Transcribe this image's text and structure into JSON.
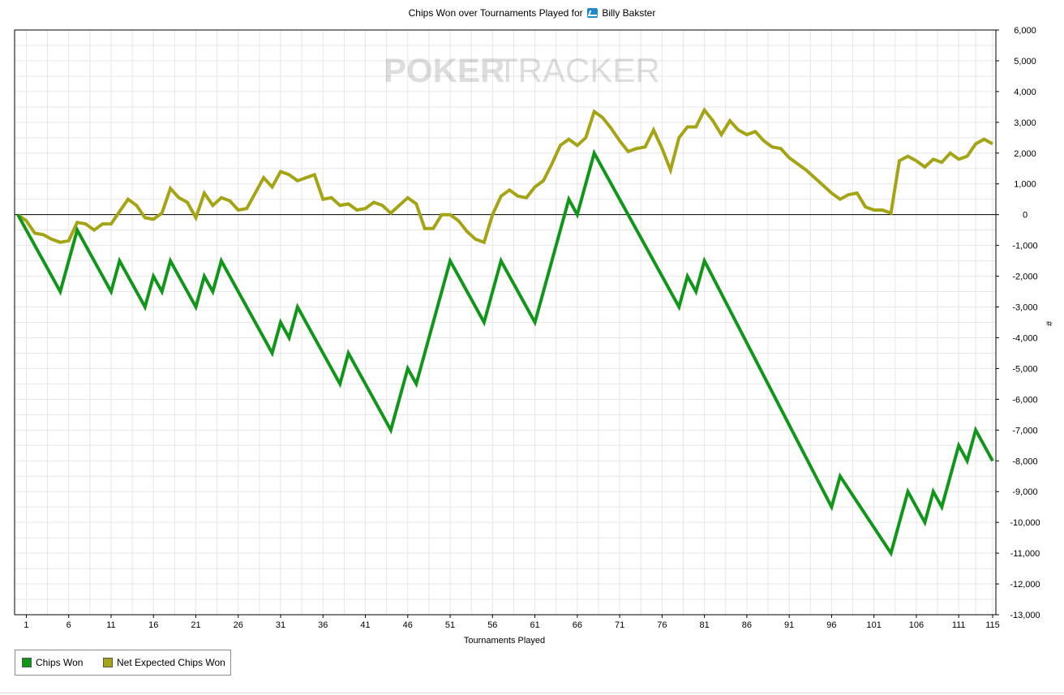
{
  "header": {
    "title_prefix": "Chips Won over Tournaments Played for",
    "site_icon": "winamax-icon",
    "player_name": "Billy Bakster"
  },
  "watermark": {
    "text_left": "POKER",
    "text_right": "TRACKER"
  },
  "chart_data": {
    "type": "line",
    "xlabel": "Tournaments Played",
    "ylabel": "#",
    "xlim": [
      0,
      115
    ],
    "ylim": [
      -13000,
      6000
    ],
    "x_ticks": [
      1,
      6,
      11,
      16,
      21,
      26,
      31,
      36,
      41,
      46,
      51,
      56,
      61,
      66,
      71,
      76,
      81,
      86,
      91,
      96,
      101,
      106,
      111,
      115
    ],
    "y_ticks": [
      6000,
      5000,
      4000,
      3000,
      2000,
      1000,
      0,
      -1000,
      -2000,
      -3000,
      -4000,
      -5000,
      -6000,
      -7000,
      -8000,
      -9000,
      -10000,
      -11000,
      -12000,
      -13000
    ],
    "y_tick_labels": [
      "6,000",
      "5,000",
      "4,000",
      "3,000",
      "2,000",
      "1,000",
      "0",
      "-1,000",
      "-2,000",
      "-3,000",
      "-4,000",
      "-5,000",
      "-6,000",
      "-7,000",
      "-8,000",
      "-9,000",
      "-10,000",
      "-11,000",
      "-12,000",
      "-13,000"
    ],
    "grid": true,
    "zero_line": true,
    "legend_position": "bottom-left",
    "series": [
      {
        "name": "Chips Won",
        "color": "#109618",
        "points": [
          [
            0,
            0
          ],
          [
            5,
            -2500
          ],
          [
            7,
            -500
          ],
          [
            11,
            -2500
          ],
          [
            12,
            -1500
          ],
          [
            15,
            -3000
          ],
          [
            16,
            -2000
          ],
          [
            17,
            -2500
          ],
          [
            18,
            -1500
          ],
          [
            21,
            -3000
          ],
          [
            22,
            -2000
          ],
          [
            23,
            -2500
          ],
          [
            24,
            -1500
          ],
          [
            30,
            -4500
          ],
          [
            31,
            -3500
          ],
          [
            32,
            -4000
          ],
          [
            33,
            -3000
          ],
          [
            38,
            -5500
          ],
          [
            39,
            -4500
          ],
          [
            44,
            -7000
          ],
          [
            46,
            -5000
          ],
          [
            47,
            -5500
          ],
          [
            51,
            -1500
          ],
          [
            55,
            -3500
          ],
          [
            57,
            -1500
          ],
          [
            61,
            -3500
          ],
          [
            65,
            500
          ],
          [
            66,
            0
          ],
          [
            68,
            2000
          ],
          [
            78,
            -3000
          ],
          [
            79,
            -2000
          ],
          [
            80,
            -2500
          ],
          [
            81,
            -1500
          ],
          [
            96,
            -9500
          ],
          [
            97,
            -8500
          ],
          [
            103,
            -11000
          ],
          [
            105,
            -9000
          ],
          [
            107,
            -10000
          ],
          [
            108,
            -9000
          ],
          [
            109,
            -9500
          ],
          [
            111,
            -7500
          ],
          [
            112,
            -8000
          ],
          [
            113,
            -7000
          ],
          [
            115,
            -8000
          ]
        ]
      },
      {
        "name": "Net Expected Chips Won",
        "color": "#a4a415",
        "points": [
          [
            0,
            0
          ],
          [
            1,
            -200
          ],
          [
            2,
            -600
          ],
          [
            3,
            -650
          ],
          [
            4,
            -800
          ],
          [
            5,
            -900
          ],
          [
            6,
            -850
          ],
          [
            7,
            -250
          ],
          [
            8,
            -300
          ],
          [
            9,
            -500
          ],
          [
            10,
            -300
          ],
          [
            11,
            -300
          ],
          [
            12,
            100
          ],
          [
            13,
            500
          ],
          [
            14,
            300
          ],
          [
            15,
            -100
          ],
          [
            16,
            -150
          ],
          [
            17,
            50
          ],
          [
            18,
            850
          ],
          [
            19,
            550
          ],
          [
            20,
            400
          ],
          [
            21,
            -100
          ],
          [
            22,
            700
          ],
          [
            23,
            300
          ],
          [
            24,
            550
          ],
          [
            25,
            450
          ],
          [
            26,
            150
          ],
          [
            27,
            200
          ],
          [
            28,
            700
          ],
          [
            29,
            1200
          ],
          [
            30,
            900
          ],
          [
            31,
            1400
          ],
          [
            32,
            1300
          ],
          [
            33,
            1100
          ],
          [
            34,
            1200
          ],
          [
            35,
            1300
          ],
          [
            36,
            500
          ],
          [
            37,
            550
          ],
          [
            38,
            300
          ],
          [
            39,
            350
          ],
          [
            40,
            150
          ],
          [
            41,
            200
          ],
          [
            42,
            400
          ],
          [
            43,
            300
          ],
          [
            44,
            50
          ],
          [
            45,
            300
          ],
          [
            46,
            550
          ],
          [
            47,
            350
          ],
          [
            48,
            -450
          ],
          [
            49,
            -450
          ],
          [
            50,
            0
          ],
          [
            51,
            0
          ],
          [
            52,
            -200
          ],
          [
            53,
            -550
          ],
          [
            54,
            -800
          ],
          [
            55,
            -900
          ],
          [
            56,
            0
          ],
          [
            57,
            600
          ],
          [
            58,
            800
          ],
          [
            59,
            600
          ],
          [
            60,
            550
          ],
          [
            61,
            900
          ],
          [
            62,
            1100
          ],
          [
            63,
            1650
          ],
          [
            64,
            2250
          ],
          [
            65,
            2450
          ],
          [
            66,
            2250
          ],
          [
            67,
            2500
          ],
          [
            68,
            3350
          ],
          [
            69,
            3150
          ],
          [
            70,
            2800
          ],
          [
            71,
            2400
          ],
          [
            72,
            2050
          ],
          [
            73,
            2150
          ],
          [
            74,
            2200
          ],
          [
            75,
            2750
          ],
          [
            76,
            2150
          ],
          [
            77,
            1450
          ],
          [
            78,
            2500
          ],
          [
            79,
            2850
          ],
          [
            80,
            2850
          ],
          [
            81,
            3400
          ],
          [
            82,
            3050
          ],
          [
            83,
            2600
          ],
          [
            84,
            3050
          ],
          [
            85,
            2750
          ],
          [
            86,
            2600
          ],
          [
            87,
            2700
          ],
          [
            88,
            2400
          ],
          [
            89,
            2200
          ],
          [
            90,
            2150
          ],
          [
            91,
            1850
          ],
          [
            92,
            1650
          ],
          [
            93,
            1450
          ],
          [
            94,
            1200
          ],
          [
            95,
            950
          ],
          [
            96,
            700
          ],
          [
            97,
            500
          ],
          [
            98,
            650
          ],
          [
            99,
            700
          ],
          [
            100,
            250
          ],
          [
            101,
            150
          ],
          [
            102,
            150
          ],
          [
            103,
            50
          ],
          [
            104,
            1750
          ],
          [
            105,
            1900
          ],
          [
            106,
            1750
          ],
          [
            107,
            1550
          ],
          [
            108,
            1800
          ],
          [
            109,
            1700
          ],
          [
            110,
            2000
          ],
          [
            111,
            1800
          ],
          [
            112,
            1900
          ],
          [
            113,
            2300
          ],
          [
            114,
            2450
          ],
          [
            115,
            2300
          ]
        ]
      }
    ]
  }
}
